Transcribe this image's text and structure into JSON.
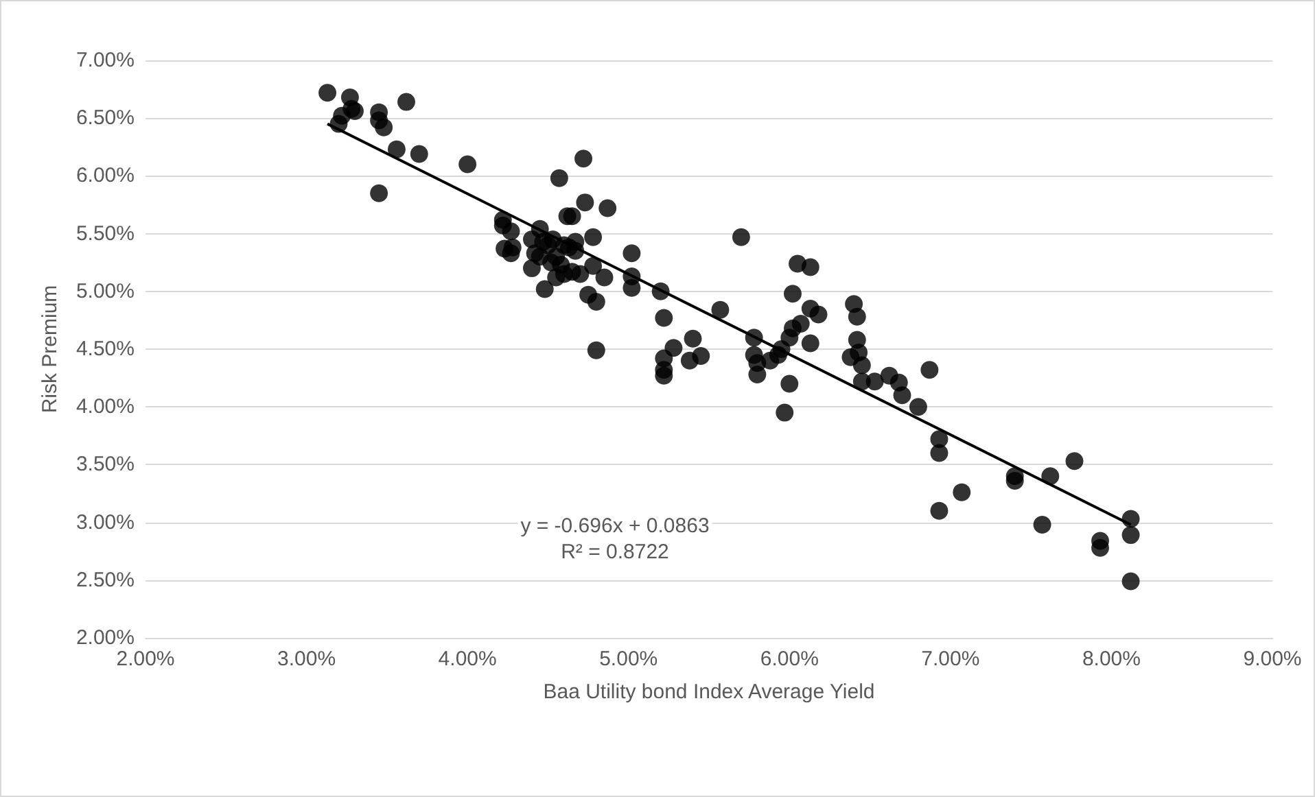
{
  "chart_data": {
    "type": "scatter",
    "xlabel": "Baa Utility bond Index Average Yield",
    "ylabel": "Risk Premium",
    "annotations": [
      "y = -0.696x + 0.0863",
      "R² = 0.8722"
    ],
    "xlim": [
      2,
      9
    ],
    "ylim": [
      2,
      7
    ],
    "xticks": [
      {
        "value": 2,
        "label": "2.00%"
      },
      {
        "value": 3,
        "label": "3.00%"
      },
      {
        "value": 4,
        "label": "4.00%"
      },
      {
        "value": 5,
        "label": "5.00%"
      },
      {
        "value": 6,
        "label": "6.00%"
      },
      {
        "value": 7,
        "label": "7.00%"
      },
      {
        "value": 8,
        "label": "8.00%"
      },
      {
        "value": 9,
        "label": "9.00%"
      }
    ],
    "yticks": [
      {
        "value": 2,
        "label": "2.00%"
      },
      {
        "value": 2.5,
        "label": "2.50%"
      },
      {
        "value": 3,
        "label": "3.00%"
      },
      {
        "value": 3.5,
        "label": "3.50%"
      },
      {
        "value": 4,
        "label": "4.00%"
      },
      {
        "value": 4.5,
        "label": "4.50%"
      },
      {
        "value": 5,
        "label": "5.00%"
      },
      {
        "value": 5.5,
        "label": "5.50%"
      },
      {
        "value": 6,
        "label": "6.00%"
      },
      {
        "value": 6.5,
        "label": "6.50%"
      },
      {
        "value": 7,
        "label": "7.00%"
      }
    ],
    "grid": "y",
    "series": [
      {
        "color": "#000000",
        "marker": "circle",
        "x": [
          3.13,
          3.2,
          3.22,
          3.27,
          3.28,
          3.3,
          3.45,
          3.45,
          3.48,
          3.45,
          3.56,
          3.62,
          3.7,
          4.0,
          4.22,
          4.22,
          4.23,
          4.27,
          4.27,
          4.28,
          4.4,
          4.4,
          4.42,
          4.45,
          4.45,
          4.47,
          4.48,
          4.5,
          4.52,
          4.53,
          4.55,
          4.55,
          4.57,
          4.58,
          4.6,
          4.6,
          4.62,
          4.63,
          4.65,
          4.65,
          4.67,
          4.67,
          4.7,
          4.72,
          4.73,
          4.75,
          4.78,
          4.78,
          4.8,
          4.8,
          4.85,
          4.87,
          5.02,
          5.02,
          5.02,
          5.2,
          5.22,
          5.22,
          5.22,
          5.22,
          5.28,
          5.38,
          5.4,
          5.45,
          5.57,
          5.7,
          5.78,
          5.78,
          5.8,
          5.8,
          5.88,
          5.93,
          5.95,
          5.97,
          6.0,
          6.0,
          6.02,
          6.02,
          6.05,
          6.07,
          6.13,
          6.13,
          6.13,
          6.18,
          6.38,
          6.4,
          6.42,
          6.42,
          6.43,
          6.45,
          6.45,
          6.53,
          6.62,
          6.68,
          6.7,
          6.8,
          6.87,
          6.93,
          6.93,
          6.93,
          7.07,
          7.4,
          7.4,
          7.57,
          7.62,
          7.77,
          7.93,
          7.93,
          8.12,
          8.12,
          8.12
        ],
        "values": [
          6.72,
          6.45,
          6.52,
          6.68,
          6.58,
          6.56,
          6.55,
          6.48,
          6.42,
          5.85,
          6.23,
          6.64,
          6.19,
          6.1,
          5.62,
          5.57,
          5.37,
          5.52,
          5.33,
          5.38,
          5.45,
          5.2,
          5.33,
          5.54,
          5.3,
          5.43,
          5.02,
          5.4,
          5.25,
          5.45,
          5.3,
          5.12,
          5.98,
          5.23,
          5.4,
          5.15,
          5.65,
          5.38,
          5.65,
          5.17,
          5.43,
          5.35,
          5.15,
          6.15,
          5.77,
          4.97,
          5.47,
          5.22,
          4.91,
          4.49,
          5.12,
          5.72,
          5.33,
          5.13,
          5.03,
          5.0,
          4.77,
          4.42,
          4.32,
          4.27,
          4.51,
          4.4,
          4.59,
          4.44,
          4.84,
          5.47,
          4.6,
          4.45,
          4.38,
          4.28,
          4.4,
          4.45,
          4.5,
          3.95,
          4.2,
          4.6,
          4.98,
          4.68,
          5.24,
          4.72,
          5.21,
          4.85,
          4.55,
          4.8,
          4.43,
          4.89,
          4.78,
          4.58,
          4.47,
          4.36,
          4.22,
          4.22,
          4.27,
          4.21,
          4.1,
          4.0,
          4.32,
          3.72,
          3.6,
          3.1,
          3.26,
          3.4,
          3.36,
          2.98,
          3.4,
          3.53,
          2.84,
          2.78,
          3.03,
          2.89,
          2.49
        ]
      },
      {
        "type": "line",
        "color": "#000000",
        "marker": "none",
        "line_style": "solid",
        "x": [
          3.13,
          8.12
        ],
        "values": [
          6.45,
          2.98
        ]
      }
    ]
  }
}
